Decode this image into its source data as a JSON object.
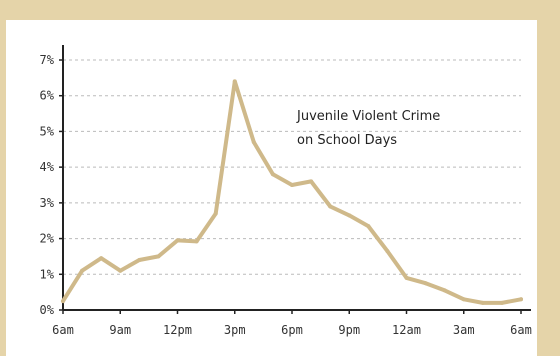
{
  "chart_data": {
    "type": "line",
    "title": "",
    "xlabel": "",
    "ylabel": "",
    "annotation": [
      "Juvenile Violent Crime",
      "on School Days"
    ],
    "x_tick_labels": [
      "6am",
      "9am",
      "12pm",
      "3pm",
      "6pm",
      "9pm",
      "12am",
      "3am",
      "6am"
    ],
    "y_tick_labels": [
      "0%",
      "1%",
      "2%",
      "3%",
      "4%",
      "5%",
      "6%",
      "7%"
    ],
    "ylim": [
      0,
      7
    ],
    "xlim": [
      0,
      24
    ],
    "grid": "horizontal dashed",
    "series": [
      {
        "color": "#cfb98a",
        "x": [
          0,
          1,
          2,
          3,
          4,
          5,
          6,
          7,
          8,
          9,
          10,
          11,
          12,
          13,
          14,
          15,
          16,
          17,
          18,
          19,
          20,
          21,
          22,
          23,
          24
        ],
        "y": [
          0.25,
          1.1,
          1.45,
          1.1,
          1.4,
          1.5,
          1.95,
          1.92,
          2.7,
          6.4,
          4.7,
          3.8,
          3.5,
          3.6,
          2.9,
          2.65,
          2.35,
          1.65,
          0.9,
          0.75,
          0.55,
          0.3,
          0.2,
          0.2,
          0.3
        ]
      }
    ]
  },
  "colors": {
    "background": "#e5d4a9",
    "panel": "#ffffff",
    "line": "#cfb98a",
    "axis": "#222222",
    "grid": "#bbbbbb"
  }
}
